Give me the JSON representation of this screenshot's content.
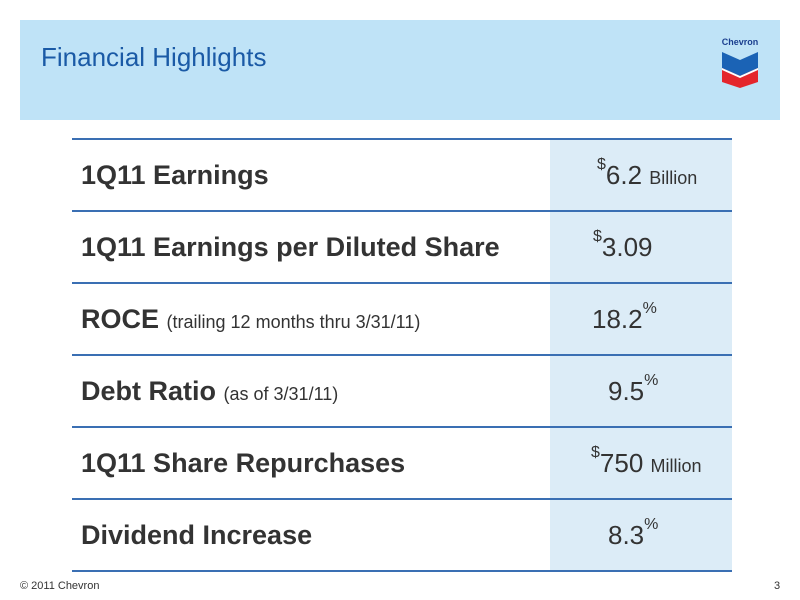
{
  "header": {
    "title": "Financial Highlights",
    "logo_text": "Chevron",
    "background_color": "#bfe3f7",
    "title_color": "#1a5aa6"
  },
  "rows": [
    {
      "label": "1Q11 Earnings",
      "note": "",
      "prefix": "$",
      "value": "6.2",
      "suffix": "",
      "unit": "Billion"
    },
    {
      "label": "1Q11 Earnings per Diluted Share",
      "note": "",
      "prefix": "$",
      "value": "3.09",
      "suffix": "",
      "unit": ""
    },
    {
      "label": "ROCE",
      "note": "(trailing 12 months thru 3/31/11)",
      "prefix": "",
      "value": "18.2",
      "suffix": "%",
      "unit": ""
    },
    {
      "label": "Debt Ratio",
      "note": "(as of 3/31/11)",
      "prefix": "",
      "value": "9.5",
      "suffix": "%",
      "unit": ""
    },
    {
      "label": "1Q11 Share Repurchases",
      "note": "",
      "prefix": "$",
      "value": "750",
      "suffix": "",
      "unit": "Million"
    },
    {
      "label": "Dividend Increase",
      "note": "",
      "prefix": "",
      "value": "8.3",
      "suffix": "%",
      "unit": ""
    }
  ],
  "footer": {
    "copyright": "© 2011 Chevron",
    "page_number": "3"
  }
}
